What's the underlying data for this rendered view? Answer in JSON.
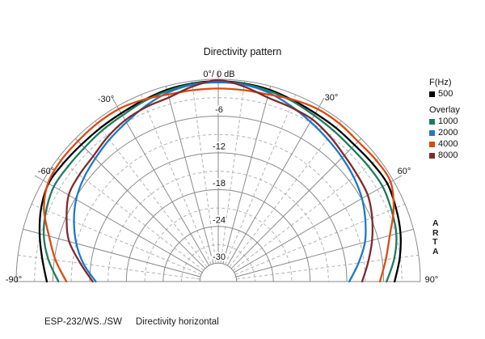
{
  "title": "Directivity pattern",
  "chart_data": {
    "type": "line",
    "subtype": "polar-directivity-half",
    "title": "Directivity pattern",
    "radial_axis": {
      "unit": "dB",
      "max": 0,
      "center": -33,
      "solid_ring_step_db": 6,
      "dashed_ring_step_db": 3,
      "ring_labels": [
        {
          "db": -6,
          "label": "-6"
        },
        {
          "db": -12,
          "label": "-12"
        },
        {
          "db": -18,
          "label": "-18"
        },
        {
          "db": -24,
          "label": "-24"
        },
        {
          "db": -30,
          "label": "-30"
        }
      ]
    },
    "angle_axis": {
      "unit": "deg",
      "min": -90,
      "max": 90,
      "solid_spoke_step": 15,
      "dashed_spoke_step": 7.5,
      "labels": [
        {
          "angle": -90,
          "label": "-90°"
        },
        {
          "angle": -60,
          "label": "-60°"
        },
        {
          "angle": -30,
          "label": "-30°"
        },
        {
          "angle": 0,
          "label": "0°/ 0 dB"
        },
        {
          "angle": 30,
          "label": "30°"
        },
        {
          "angle": 60,
          "label": "60°"
        },
        {
          "angle": 90,
          "label": "90°"
        }
      ]
    },
    "angles": [
      -90,
      -82.5,
      -75,
      -67.5,
      -60,
      -52.5,
      -45,
      -37.5,
      -30,
      -22.5,
      -15,
      -7.5,
      0,
      7.5,
      15,
      22.5,
      30,
      37.5,
      45,
      52.5,
      60,
      67.5,
      75,
      82.5,
      90
    ],
    "series": [
      {
        "name": "500",
        "color": "#000000",
        "db": [
          -5.0,
          -4.0,
          -2.8,
          -1.7,
          -1.0,
          -1.2,
          -1.4,
          -1.4,
          -1.3,
          -1.0,
          -0.6,
          -0.4,
          -0.3,
          -0.4,
          -0.6,
          -1.0,
          -1.3,
          -1.4,
          -1.5,
          -1.3,
          -1.1,
          -1.6,
          -2.2,
          -3.1,
          -4.2
        ]
      },
      {
        "name": "1000",
        "color": "#1d7a60",
        "db": [
          -6.9,
          -5.0,
          -3.5,
          -2.6,
          -2.0,
          -2.1,
          -2.1,
          -1.9,
          -1.7,
          -1.2,
          -0.8,
          -0.5,
          -0.4,
          -0.5,
          -0.8,
          -1.2,
          -1.7,
          -2.0,
          -2.2,
          -2.1,
          -2.0,
          -2.4,
          -2.9,
          -4.0,
          -5.5
        ]
      },
      {
        "name": "2000",
        "color": "#1e78c8",
        "db": [
          -13.0,
          -10.8,
          -9.0,
          -7.5,
          -6.2,
          -5.3,
          -4.6,
          -3.8,
          -3.0,
          -2.0,
          -1.1,
          -0.6,
          -0.5,
          -0.6,
          -1.1,
          -2.0,
          -2.9,
          -3.7,
          -4.4,
          -5.1,
          -5.9,
          -7.0,
          -8.2,
          -9.9,
          -11.6
        ]
      },
      {
        "name": "4000",
        "color": "#dc4a12",
        "db": [
          -8.2,
          -6.2,
          -4.4,
          -2.2,
          -0.9,
          -0.6,
          -0.6,
          -0.5,
          -0.5,
          -0.9,
          -1.4,
          -1.5,
          -1.5,
          -1.5,
          -1.4,
          -0.9,
          -0.5,
          -0.5,
          -0.7,
          -0.5,
          -0.5,
          -2.0,
          -4.0,
          -5.4,
          -6.6
        ]
      },
      {
        "name": "8000",
        "color": "#7d2b2b",
        "db": [
          -12.5,
          -10.3,
          -7.8,
          -6.2,
          -4.8,
          -4.4,
          -4.1,
          -3.3,
          -2.6,
          -2.2,
          -1.9,
          -0.9,
          -0.15,
          -0.9,
          -1.9,
          -2.2,
          -2.4,
          -3.1,
          -3.9,
          -4.4,
          -4.8,
          -5.8,
          -7.0,
          -8.3,
          -9.5
        ]
      }
    ],
    "grid": {
      "solid_color": "#8a8a8a",
      "dashed_color": "#b2b2b2"
    }
  },
  "legend": {
    "freq_heading": "F(Hz)",
    "overlay_heading": "Overlay",
    "main_items": [
      {
        "label": "500",
        "color": "#000000"
      }
    ],
    "overlay_items": [
      {
        "label": "1000",
        "color": "#1d7a60"
      },
      {
        "label": "2000",
        "color": "#1e78c8"
      },
      {
        "label": "4000",
        "color": "#dc4a12"
      },
      {
        "label": "8000",
        "color": "#7d2b2b"
      }
    ]
  },
  "watermark": {
    "text": "ARTA"
  },
  "footer": {
    "model": "ESP-232/WS../SW",
    "description": "Directivity horizontal"
  }
}
